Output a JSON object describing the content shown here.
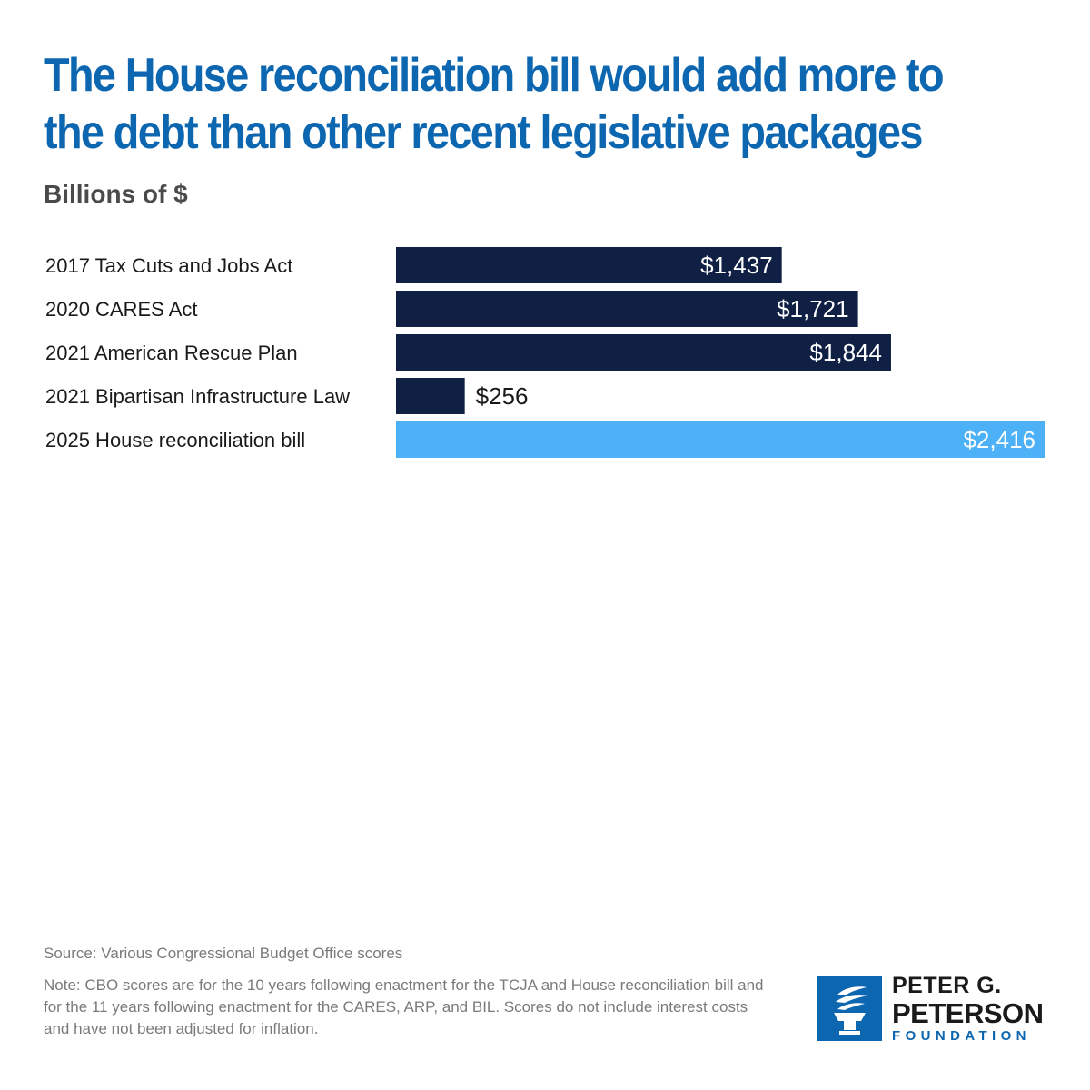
{
  "title": "The House reconciliation bill would add more to the debt than other recent legislative packages",
  "subtitle": "Billions of $",
  "chart_data": {
    "type": "bar",
    "orientation": "horizontal",
    "categories": [
      "2017 Tax Cuts and Jobs Act",
      "2020 CARES Act",
      "2021 American Rescue Plan",
      "2021 Bipartisan Infrastructure Law",
      "2025 House reconciliation bill"
    ],
    "values": [
      1437,
      1721,
      1844,
      256,
      2416
    ],
    "value_labels": [
      "$1,437",
      "$1,721",
      "$1,844",
      "$256",
      "$2,416"
    ],
    "colors": [
      "#0f2044",
      "#0f2044",
      "#0f2044",
      "#0f2044",
      "#4db1f8"
    ],
    "ylim": [
      0,
      2416
    ],
    "grid": false,
    "legend": "none"
  },
  "footer": {
    "source": "Source: Various Congressional Budget Office scores",
    "note": "Note: CBO scores are for the 10 years following enactment for the TCJA and House reconciliation bill and for the 11 years following enactment for the CARES, ARP, and BIL. Scores do not include interest costs and have not been adjusted for inflation."
  },
  "logo": {
    "line1": "PETER G.",
    "line2": "PETERSON",
    "line3": "FOUNDATION",
    "icon": "torch-icon",
    "color": "#0d66b0"
  }
}
